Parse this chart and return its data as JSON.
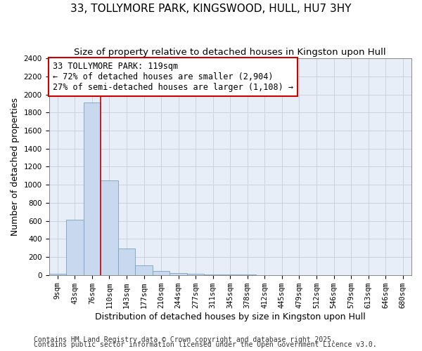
{
  "title": "33, TOLLYMORE PARK, KINGSWOOD, HULL, HU7 3HY",
  "subtitle": "Size of property relative to detached houses in Kingston upon Hull",
  "xlabel": "Distribution of detached houses by size in Kingston upon Hull",
  "ylabel": "Number of detached properties",
  "bin_labels": [
    "9sqm",
    "43sqm",
    "76sqm",
    "110sqm",
    "143sqm",
    "177sqm",
    "210sqm",
    "244sqm",
    "277sqm",
    "311sqm",
    "345sqm",
    "378sqm",
    "412sqm",
    "445sqm",
    "479sqm",
    "512sqm",
    "546sqm",
    "579sqm",
    "613sqm",
    "646sqm",
    "680sqm"
  ],
  "bar_heights": [
    15,
    610,
    1910,
    1045,
    290,
    110,
    45,
    20,
    10,
    5,
    3,
    2,
    1,
    0,
    0,
    0,
    0,
    0,
    0,
    0,
    0
  ],
  "bar_color": "#c8d8ee",
  "bar_edgecolor": "#7aa0c0",
  "grid_color": "#c8d4e0",
  "background_color": "#ffffff",
  "plot_bg_color": "#e8eef8",
  "vline_x": 2.5,
  "vline_color": "#cc0000",
  "annotation_text": "33 TOLLYMORE PARK: 119sqm\n← 72% of detached houses are smaller (2,904)\n27% of semi-detached houses are larger (1,108) →",
  "annotation_box_color": "#cc0000",
  "ylim": [
    0,
    2400
  ],
  "yticks": [
    0,
    200,
    400,
    600,
    800,
    1000,
    1200,
    1400,
    1600,
    1800,
    2000,
    2200,
    2400
  ],
  "footer1": "Contains HM Land Registry data © Crown copyright and database right 2025.",
  "footer2": "Contains public sector information licensed under the Open Government Licence v3.0.",
  "title_fontsize": 11,
  "subtitle_fontsize": 9.5,
  "axis_label_fontsize": 9,
  "tick_fontsize": 7.5,
  "annotation_fontsize": 8.5,
  "footer_fontsize": 7
}
